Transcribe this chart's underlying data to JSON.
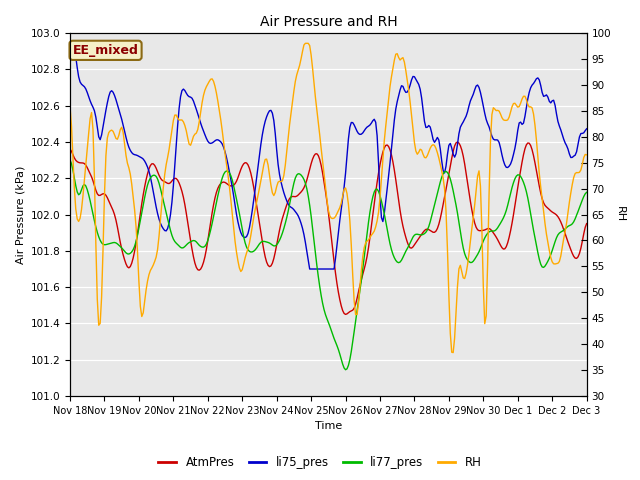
{
  "title": "Air Pressure and RH",
  "xlabel": "Time",
  "ylabel_left": "Air Pressure (kPa)",
  "ylabel_right": "RH",
  "ylim_left": [
    101.0,
    103.0
  ],
  "ylim_right": [
    30,
    100
  ],
  "yticks_left": [
    101.0,
    101.2,
    101.4,
    101.6,
    101.8,
    102.0,
    102.2,
    102.4,
    102.6,
    102.8,
    103.0
  ],
  "yticks_right": [
    30,
    35,
    40,
    45,
    50,
    55,
    60,
    65,
    70,
    75,
    80,
    85,
    90,
    95,
    100
  ],
  "bg_color": "#e8e8e8",
  "annotation_text": "EE_mixed",
  "annotation_bg": "#f5f0c8",
  "annotation_border": "#8B6914",
  "annotation_text_color": "#8B0000",
  "colors": {
    "AtmPres": "#cc0000",
    "li75_pres": "#0000cc",
    "li77_pres": "#00bb00",
    "RH": "#ffaa00"
  },
  "legend_labels": [
    "AtmPres",
    "li75_pres",
    "li77_pres",
    "RH"
  ],
  "linewidth": 1.0,
  "figsize": [
    6.4,
    4.8
  ],
  "dpi": 100
}
